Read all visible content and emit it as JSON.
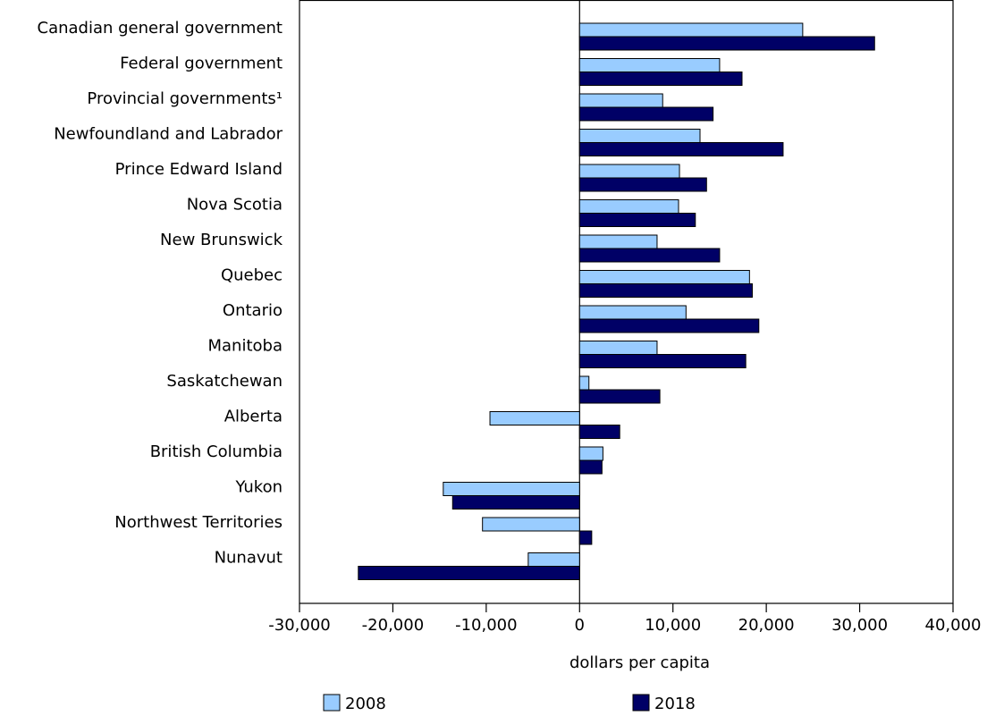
{
  "chart_data": {
    "type": "bar",
    "orientation": "horizontal",
    "categories": [
      "Canadian general government",
      "Federal government",
      "Provincial governments¹",
      "Newfoundland and Labrador",
      "Prince Edward Island",
      "Nova Scotia",
      "New Brunswick",
      "Quebec",
      "Ontario",
      "Manitoba",
      "Saskatchewan",
      "Alberta",
      "British Columbia",
      "Yukon",
      "Northwest Territories",
      "Nunavut"
    ],
    "series": [
      {
        "name": "2008",
        "color": "#99ccff",
        "values": [
          23900,
          15000,
          8900,
          12900,
          10700,
          10600,
          8300,
          18200,
          11400,
          8300,
          1000,
          -9600,
          2500,
          -14600,
          -10400,
          -5500
        ]
      },
      {
        "name": "2018",
        "color": "#000066",
        "values": [
          31600,
          17400,
          14300,
          21800,
          13600,
          12400,
          15000,
          18500,
          19200,
          17800,
          8600,
          4300,
          2400,
          -13600,
          1300,
          -23700
        ]
      }
    ],
    "xlabel": "dollars per capita",
    "ylabel": "",
    "xlim": [
      -30000,
      40000
    ],
    "x_ticks": [
      -30000,
      -20000,
      -10000,
      0,
      10000,
      20000,
      30000,
      40000
    ],
    "x_tick_labels": [
      "-30,000",
      "-20,000",
      "-10,000",
      "0",
      "10,000",
      "20,000",
      "30,000",
      "40,000"
    ],
    "grid": false,
    "legend_position": "bottom"
  }
}
